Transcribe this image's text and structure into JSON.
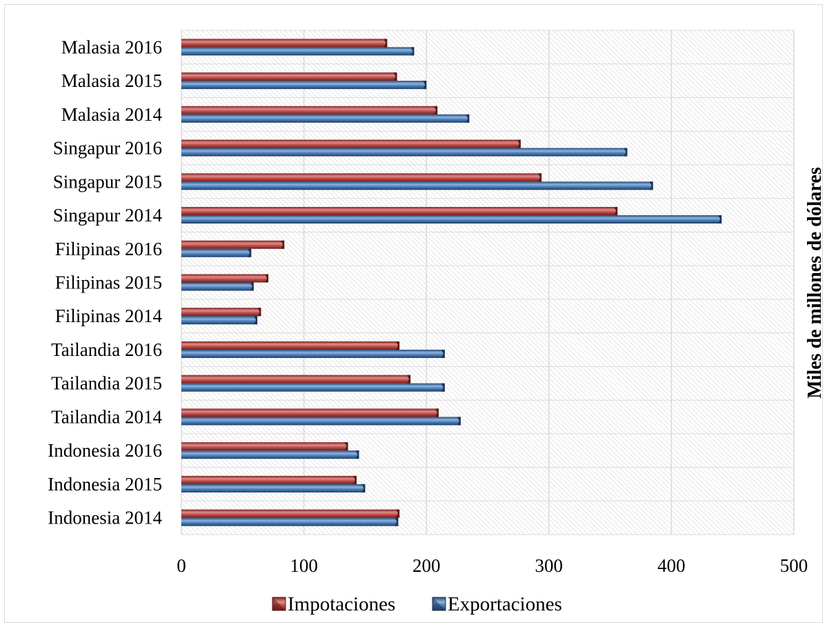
{
  "chart_data": {
    "type": "bar",
    "orientation": "horizontal",
    "categories": [
      "Indonesia 2014",
      "Indonesia 2015",
      "Indonesia 2016",
      "Tailandia 2014",
      "Tailandia 2015",
      "Tailandia 2016",
      "Filipinas 2014",
      "Filipinas 2015",
      "Filipinas 2016",
      "Singapur 2014",
      "Singapur 2015",
      "Singapur 2016",
      "Malasia 2014",
      "Malasia 2015",
      "Malasia 2016"
    ],
    "series": [
      {
        "name": "Impotaciones",
        "color": "#c0504d",
        "values": [
          178,
          143,
          136,
          210,
          187,
          178,
          65,
          71,
          84,
          356,
          294,
          277,
          209,
          176,
          168
        ]
      },
      {
        "name": "Exportaciones",
        "color": "#4f81bd",
        "values": [
          177,
          150,
          145,
          228,
          215,
          215,
          62,
          59,
          57,
          441,
          385,
          364,
          235,
          200,
          190
        ]
      }
    ],
    "xlim": [
      0,
      500
    ],
    "x_ticks": [
      "0",
      "100",
      "200",
      "300",
      "400",
      "500"
    ],
    "ylabel": "Miles de millones de dólares",
    "legend_position": "bottom",
    "grid": true
  }
}
